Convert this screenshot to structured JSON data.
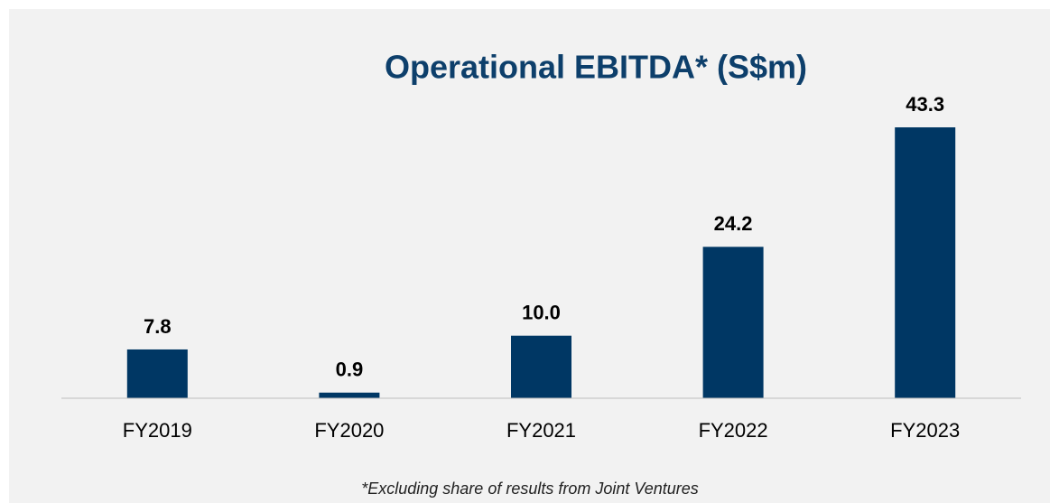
{
  "chart_data": {
    "type": "bar",
    "title": "Operational EBITDA* (S$m)",
    "note": "*Excluding share of results from Joint Ventures",
    "categories": [
      "FY2019",
      "FY2020",
      "FY2021",
      "FY2022",
      "FY2023"
    ],
    "values": [
      7.8,
      0.9,
      10.0,
      24.2,
      43.3
    ],
    "value_labels": [
      "7.8",
      "0.9",
      "10.0",
      "24.2",
      "43.3"
    ],
    "color": "#003764",
    "ylim": [
      0,
      50
    ]
  }
}
